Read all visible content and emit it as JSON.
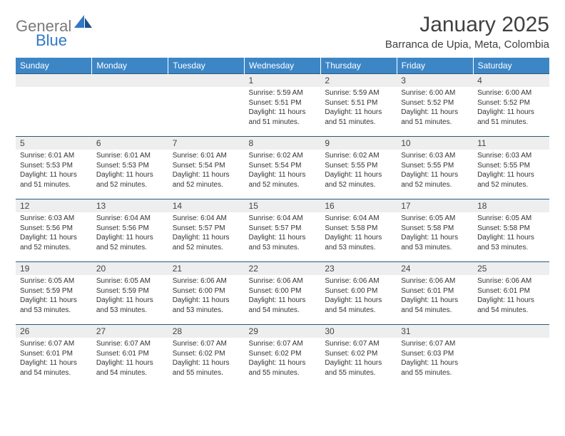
{
  "brand": {
    "word1": "General",
    "word2": "Blue",
    "grey": "#7a7a7a",
    "blue": "#2f78c4"
  },
  "title": "January 2025",
  "location": "Barranca de Upia, Meta, Colombia",
  "theme": {
    "header_bg": "#3d86c6",
    "header_fg": "#ffffff",
    "daynum_bg": "#eeeeee",
    "rule": "#2b587a",
    "text": "#333333",
    "title_color": "#404040",
    "font": "Arial",
    "th_fontsize": 12,
    "daynum_fontsize": 12,
    "content_fontsize": 10,
    "title_fontsize": 30,
    "location_fontsize": 15
  },
  "weekdays": [
    "Sunday",
    "Monday",
    "Tuesday",
    "Wednesday",
    "Thursday",
    "Friday",
    "Saturday"
  ],
  "weeks": [
    [
      null,
      null,
      null,
      {
        "n": "1",
        "sunrise": "5:59 AM",
        "sunset": "5:51 PM",
        "daylight": "11 hours and 51 minutes."
      },
      {
        "n": "2",
        "sunrise": "5:59 AM",
        "sunset": "5:51 PM",
        "daylight": "11 hours and 51 minutes."
      },
      {
        "n": "3",
        "sunrise": "6:00 AM",
        "sunset": "5:52 PM",
        "daylight": "11 hours and 51 minutes."
      },
      {
        "n": "4",
        "sunrise": "6:00 AM",
        "sunset": "5:52 PM",
        "daylight": "11 hours and 51 minutes."
      }
    ],
    [
      {
        "n": "5",
        "sunrise": "6:01 AM",
        "sunset": "5:53 PM",
        "daylight": "11 hours and 51 minutes."
      },
      {
        "n": "6",
        "sunrise": "6:01 AM",
        "sunset": "5:53 PM",
        "daylight": "11 hours and 52 minutes."
      },
      {
        "n": "7",
        "sunrise": "6:01 AM",
        "sunset": "5:54 PM",
        "daylight": "11 hours and 52 minutes."
      },
      {
        "n": "8",
        "sunrise": "6:02 AM",
        "sunset": "5:54 PM",
        "daylight": "11 hours and 52 minutes."
      },
      {
        "n": "9",
        "sunrise": "6:02 AM",
        "sunset": "5:55 PM",
        "daylight": "11 hours and 52 minutes."
      },
      {
        "n": "10",
        "sunrise": "6:03 AM",
        "sunset": "5:55 PM",
        "daylight": "11 hours and 52 minutes."
      },
      {
        "n": "11",
        "sunrise": "6:03 AM",
        "sunset": "5:55 PM",
        "daylight": "11 hours and 52 minutes."
      }
    ],
    [
      {
        "n": "12",
        "sunrise": "6:03 AM",
        "sunset": "5:56 PM",
        "daylight": "11 hours and 52 minutes."
      },
      {
        "n": "13",
        "sunrise": "6:04 AM",
        "sunset": "5:56 PM",
        "daylight": "11 hours and 52 minutes."
      },
      {
        "n": "14",
        "sunrise": "6:04 AM",
        "sunset": "5:57 PM",
        "daylight": "11 hours and 52 minutes."
      },
      {
        "n": "15",
        "sunrise": "6:04 AM",
        "sunset": "5:57 PM",
        "daylight": "11 hours and 53 minutes."
      },
      {
        "n": "16",
        "sunrise": "6:04 AM",
        "sunset": "5:58 PM",
        "daylight": "11 hours and 53 minutes."
      },
      {
        "n": "17",
        "sunrise": "6:05 AM",
        "sunset": "5:58 PM",
        "daylight": "11 hours and 53 minutes."
      },
      {
        "n": "18",
        "sunrise": "6:05 AM",
        "sunset": "5:58 PM",
        "daylight": "11 hours and 53 minutes."
      }
    ],
    [
      {
        "n": "19",
        "sunrise": "6:05 AM",
        "sunset": "5:59 PM",
        "daylight": "11 hours and 53 minutes."
      },
      {
        "n": "20",
        "sunrise": "6:05 AM",
        "sunset": "5:59 PM",
        "daylight": "11 hours and 53 minutes."
      },
      {
        "n": "21",
        "sunrise": "6:06 AM",
        "sunset": "6:00 PM",
        "daylight": "11 hours and 53 minutes."
      },
      {
        "n": "22",
        "sunrise": "6:06 AM",
        "sunset": "6:00 PM",
        "daylight": "11 hours and 54 minutes."
      },
      {
        "n": "23",
        "sunrise": "6:06 AM",
        "sunset": "6:00 PM",
        "daylight": "11 hours and 54 minutes."
      },
      {
        "n": "24",
        "sunrise": "6:06 AM",
        "sunset": "6:01 PM",
        "daylight": "11 hours and 54 minutes."
      },
      {
        "n": "25",
        "sunrise": "6:06 AM",
        "sunset": "6:01 PM",
        "daylight": "11 hours and 54 minutes."
      }
    ],
    [
      {
        "n": "26",
        "sunrise": "6:07 AM",
        "sunset": "6:01 PM",
        "daylight": "11 hours and 54 minutes."
      },
      {
        "n": "27",
        "sunrise": "6:07 AM",
        "sunset": "6:01 PM",
        "daylight": "11 hours and 54 minutes."
      },
      {
        "n": "28",
        "sunrise": "6:07 AM",
        "sunset": "6:02 PM",
        "daylight": "11 hours and 55 minutes."
      },
      {
        "n": "29",
        "sunrise": "6:07 AM",
        "sunset": "6:02 PM",
        "daylight": "11 hours and 55 minutes."
      },
      {
        "n": "30",
        "sunrise": "6:07 AM",
        "sunset": "6:02 PM",
        "daylight": "11 hours and 55 minutes."
      },
      {
        "n": "31",
        "sunrise": "6:07 AM",
        "sunset": "6:03 PM",
        "daylight": "11 hours and 55 minutes."
      },
      null
    ]
  ],
  "labels": {
    "sunrise": "Sunrise:",
    "sunset": "Sunset:",
    "daylight": "Daylight:"
  }
}
